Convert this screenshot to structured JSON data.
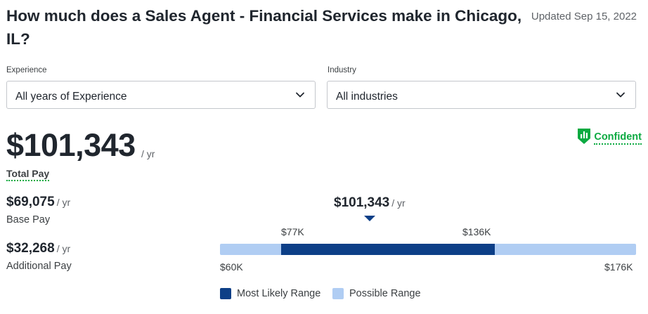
{
  "header": {
    "title": "How much does a Sales Agent - Financial Services make in Chicago, IL?",
    "updated": "Updated Sep 15, 2022"
  },
  "filters": {
    "experience": {
      "label": "Experience",
      "value": "All years of Experience"
    },
    "industry": {
      "label": "Industry",
      "value": "All industries"
    }
  },
  "confidence": {
    "label": "Confident"
  },
  "total_pay": {
    "amount": "$101,343",
    "per": "/ yr",
    "label": "Total Pay"
  },
  "base_pay": {
    "amount": "$69,075",
    "per": "/ yr",
    "label": "Base Pay"
  },
  "additional_pay": {
    "amount": "$32,268",
    "per": "/ yr",
    "label": "Additional Pay"
  },
  "range": {
    "marker_amount": "$101,343",
    "marker_per": "/ yr",
    "likely_low": "$77K",
    "likely_high": "$136K",
    "possible_low": "$60K",
    "possible_high": "$176K"
  },
  "legend": {
    "likely": "Most Likely Range",
    "possible": "Possible Range"
  },
  "colors": {
    "likely": "#0d3f87",
    "possible": "#b0cdf3",
    "brand_green": "#0caa41"
  }
}
